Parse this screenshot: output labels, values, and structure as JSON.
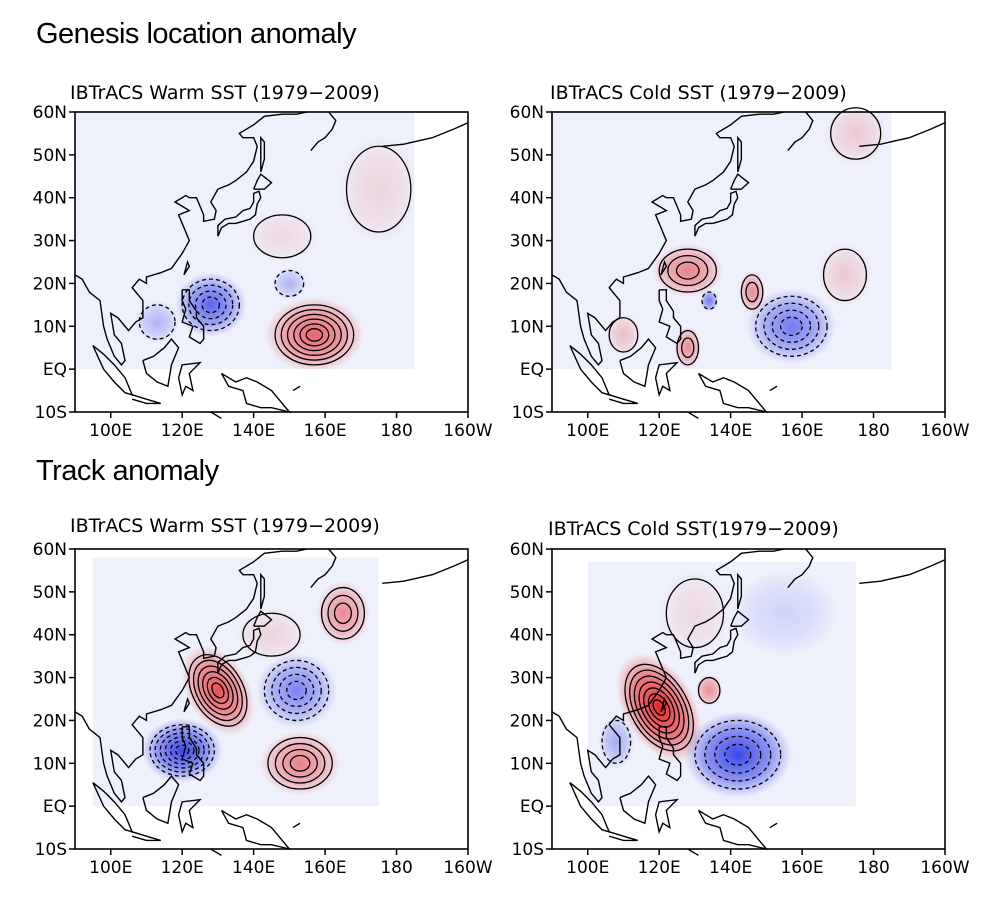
{
  "sections": [
    {
      "title": "Genesis location anomaly"
    },
    {
      "title": "Track anomaly"
    }
  ],
  "axes": {
    "lat_labels": [
      "60N",
      "50N",
      "40N",
      "30N",
      "20N",
      "10N",
      "EQ",
      "10S"
    ],
    "lat_values": [
      60,
      50,
      40,
      30,
      20,
      10,
      0,
      -10
    ],
    "lon_labels": [
      "100E",
      "120E",
      "140E",
      "160E",
      "180",
      "160W"
    ],
    "lon_values": [
      100,
      120,
      140,
      160,
      180,
      200
    ],
    "lon_range": [
      90,
      200
    ],
    "lat_range": [
      -10,
      60
    ]
  },
  "colors": {
    "positive": "#e8262a",
    "negative": "#1d2ae8",
    "background_tint": "#eef0fb"
  },
  "panels": [
    {
      "title": "IBTrACS Warm SST (1979−2009)",
      "shade_lon": [
        90,
        185
      ],
      "shade_lat": [
        0,
        60
      ],
      "anomalies": [
        {
          "lon": 157,
          "lat": 8,
          "sign": 1,
          "strength": 0.7,
          "rlon": 11,
          "rlat": 7,
          "contours": 6
        },
        {
          "lon": 128,
          "lat": 15,
          "sign": -1,
          "strength": 0.7,
          "rlon": 8,
          "rlat": 6,
          "contours": 4
        },
        {
          "lon": 150,
          "lat": 20,
          "sign": -1,
          "strength": 0.3,
          "rlon": 4,
          "rlat": 3,
          "contours": 1
        },
        {
          "lon": 113,
          "lat": 11,
          "sign": -1,
          "strength": 0.3,
          "rlon": 5,
          "rlat": 4,
          "contours": 1
        },
        {
          "lon": 175,
          "lat": 42,
          "sign": 1,
          "strength": 0.15,
          "rlon": 9,
          "rlat": 10,
          "contours": 1
        },
        {
          "lon": 148,
          "lat": 31,
          "sign": 1,
          "strength": 0.12,
          "rlon": 8,
          "rlat": 5,
          "contours": 1
        }
      ]
    },
    {
      "title": "IBTrACS Cold SST (1979−2009)",
      "shade_lon": [
        90,
        185
      ],
      "shade_lat": [
        0,
        60
      ],
      "anomalies": [
        {
          "lon": 128,
          "lat": 23,
          "sign": 1,
          "strength": 0.55,
          "rlon": 8,
          "rlat": 5,
          "contours": 3
        },
        {
          "lon": 146,
          "lat": 18,
          "sign": 1,
          "strength": 0.5,
          "rlon": 3,
          "rlat": 4,
          "contours": 2
        },
        {
          "lon": 128,
          "lat": 5,
          "sign": 1,
          "strength": 0.5,
          "rlon": 3,
          "rlat": 4,
          "contours": 2
        },
        {
          "lon": 110,
          "lat": 8,
          "sign": 1,
          "strength": 0.25,
          "rlon": 4,
          "rlat": 4,
          "contours": 1
        },
        {
          "lon": 157,
          "lat": 10,
          "sign": -1,
          "strength": 0.6,
          "rlon": 10,
          "rlat": 7,
          "contours": 4
        },
        {
          "lon": 134,
          "lat": 16,
          "sign": -1,
          "strength": 0.6,
          "rlon": 2,
          "rlat": 2,
          "contours": 1
        },
        {
          "lon": 172,
          "lat": 22,
          "sign": 1,
          "strength": 0.2,
          "rlon": 6,
          "rlat": 6,
          "contours": 1
        },
        {
          "lon": 175,
          "lat": 55,
          "sign": 1,
          "strength": 0.2,
          "rlon": 7,
          "rlat": 6,
          "contours": 1
        }
      ]
    },
    {
      "title": "IBTrACS Warm SST (1979−2009)",
      "shade_lon": [
        95,
        175
      ],
      "shade_lat": [
        0,
        58
      ],
      "anomalies": [
        {
          "lon": 130,
          "lat": 27,
          "sign": 1,
          "strength": 0.8,
          "rlon": 7,
          "rlat": 9,
          "contours": 6,
          "rotate": -30
        },
        {
          "lon": 120,
          "lat": 13,
          "sign": -1,
          "strength": 0.85,
          "rlon": 9,
          "rlat": 6,
          "contours": 6
        },
        {
          "lon": 152,
          "lat": 27,
          "sign": -1,
          "strength": 0.55,
          "rlon": 9,
          "rlat": 7,
          "contours": 4
        },
        {
          "lon": 153,
          "lat": 10,
          "sign": 1,
          "strength": 0.55,
          "rlon": 9,
          "rlat": 6,
          "contours": 4
        },
        {
          "lon": 165,
          "lat": 45,
          "sign": 1,
          "strength": 0.5,
          "rlon": 6,
          "rlat": 6,
          "contours": 3
        },
        {
          "lon": 145,
          "lat": 40,
          "sign": 1,
          "strength": 0.15,
          "rlon": 8,
          "rlat": 5,
          "contours": 1
        }
      ]
    },
    {
      "title": "IBTrACS Cold SST(1979−2009)",
      "shade_lon": [
        100,
        175
      ],
      "shade_lat": [
        0,
        57
      ],
      "anomalies": [
        {
          "lon": 120,
          "lat": 23,
          "sign": 1,
          "strength": 1,
          "rlon": 8,
          "rlat": 11,
          "contours": 7,
          "rotate": -30
        },
        {
          "lon": 134,
          "lat": 27,
          "sign": 1,
          "strength": 0.5,
          "rlon": 3,
          "rlat": 3,
          "contours": 1
        },
        {
          "lon": 142,
          "lat": 12,
          "sign": -1,
          "strength": 0.85,
          "rlon": 12,
          "rlat": 8,
          "contours": 4
        },
        {
          "lon": 108,
          "lat": 15,
          "sign": -1,
          "strength": 0.35,
          "rlon": 4,
          "rlat": 5,
          "contours": 1
        },
        {
          "lon": 155,
          "lat": 45,
          "sign": -1,
          "strength": 0.15,
          "rlon": 12,
          "rlat": 8,
          "contours": 0
        },
        {
          "lon": 130,
          "lat": 45,
          "sign": 1,
          "strength": 0.12,
          "rlon": 8,
          "rlat": 8,
          "contours": 1
        }
      ]
    }
  ]
}
